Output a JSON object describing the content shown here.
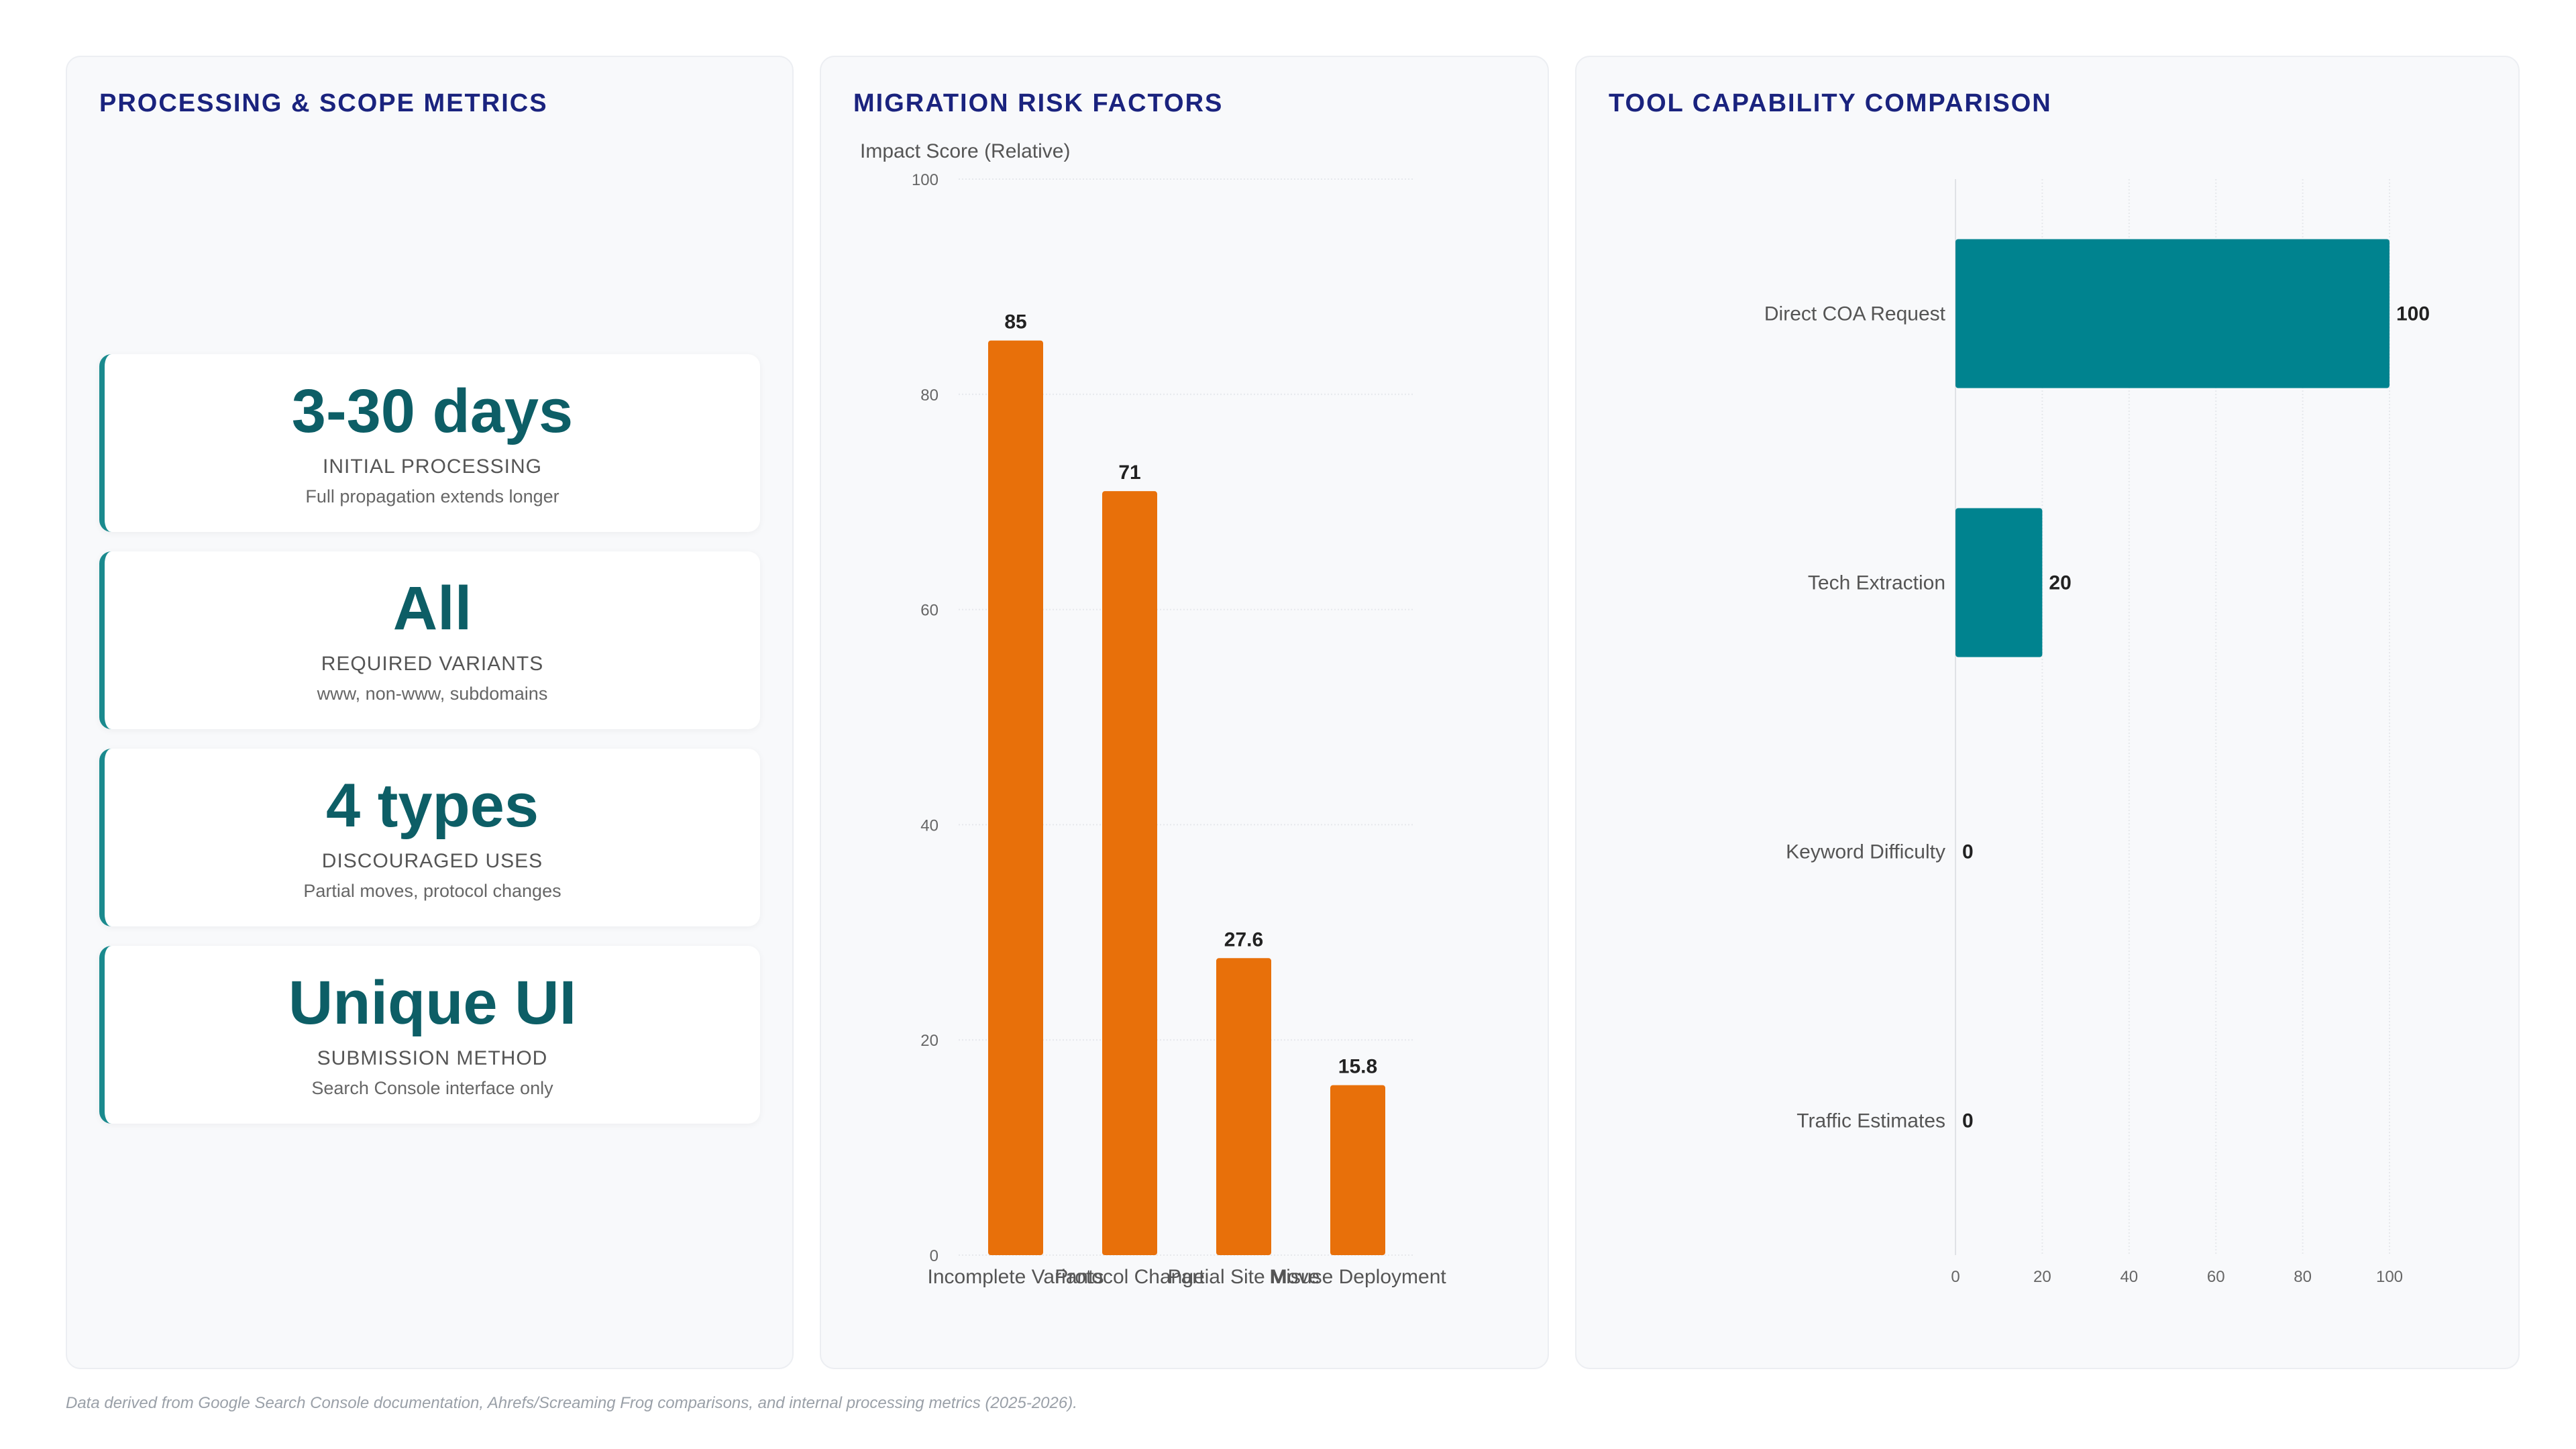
{
  "metrics_panel": {
    "title": "PROCESSING & SCOPE METRICS",
    "cards": [
      {
        "value": "3-30 days",
        "label": "INITIAL PROCESSING",
        "sub": "Full propagation extends longer"
      },
      {
        "value": "All",
        "label": "REQUIRED VARIANTS",
        "sub": "www, non-www, subdomains"
      },
      {
        "value": "4 types",
        "label": "DISCOURAGED USES",
        "sub": "Partial moves, protocol changes"
      },
      {
        "value": "Unique UI",
        "label": "SUBMISSION METHOD",
        "sub": "Search Console interface only"
      }
    ]
  },
  "risk_panel": {
    "title": "MIGRATION RISK FACTORS"
  },
  "tools_panel": {
    "title": "TOOL CAPABILITY COMPARISON"
  },
  "footnote": "Data derived from Google Search Console documentation, Ahrefs/Screaming Frog comparisons, and internal processing metrics (2025-2026).",
  "colors": {
    "risk_bar": "#e8700a",
    "tool_bar": "#00838f",
    "accent": "#1a8a8e",
    "title": "#1a237e"
  },
  "chart_data": [
    {
      "type": "bar",
      "title": "MIGRATION RISK FACTORS",
      "ylabel": "Impact Score (Relative)",
      "xlabel": "",
      "categories": [
        "Incomplete Variants",
        "Protocol Change",
        "Partial Site Move",
        "Misuse Deployment"
      ],
      "values": [
        85,
        71,
        27.6,
        15.8
      ],
      "data_labels": [
        "85",
        "71",
        "27.6",
        "15.8"
      ],
      "ylim": [
        0,
        100
      ],
      "yticks": [
        0,
        20,
        40,
        60,
        80,
        100
      ],
      "grid": true,
      "orientation": "vertical"
    },
    {
      "type": "bar",
      "title": "TOOL CAPABILITY COMPARISON",
      "orientation": "horizontal",
      "categories": [
        "Direct COA Request",
        "Tech Extraction",
        "Keyword Difficulty",
        "Traffic Estimates"
      ],
      "values": [
        100,
        20,
        0,
        0
      ],
      "data_labels": [
        "100",
        "20",
        "0",
        "0"
      ],
      "xlim": [
        0,
        100
      ],
      "xticks": [
        0,
        20,
        40,
        60,
        80,
        100
      ],
      "grid": true
    }
  ]
}
